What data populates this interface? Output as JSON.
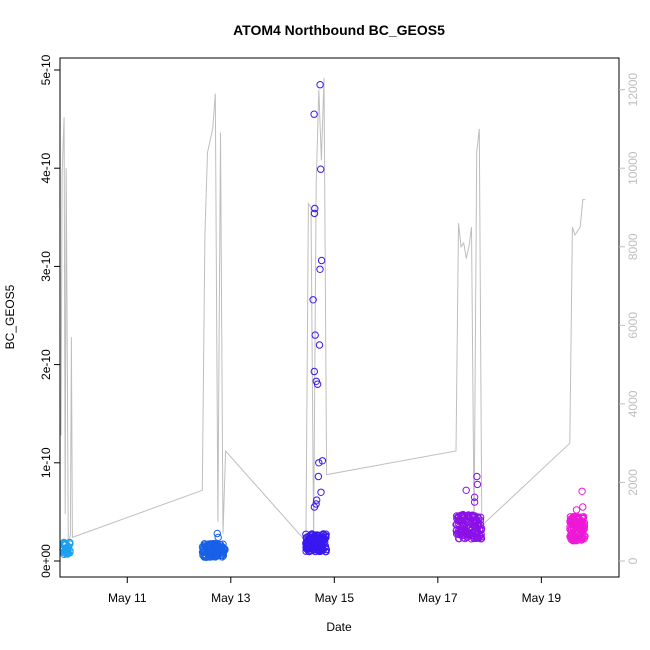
{
  "chart_data": {
    "type": "scatter",
    "title": "ATOM4 Northbound BC_GEOS5",
    "xlabel": "Date",
    "ylabel": "BC_GEOS5",
    "x_unit": "days (May, fractional day of month)",
    "xlim": [
      9.7,
      20.5
    ],
    "ylim": [
      0,
      5e-10
    ],
    "y_ticks": [
      {
        "value": 0,
        "label": "0e+00"
      },
      {
        "value": 1e-10,
        "label": "1e-10"
      },
      {
        "value": 2e-10,
        "label": "2e-10"
      },
      {
        "value": 3e-10,
        "label": "3e-10"
      },
      {
        "value": 4e-10,
        "label": "4e-10"
      },
      {
        "value": 5e-10,
        "label": "5e-10"
      }
    ],
    "x_ticks": [
      {
        "value": 11,
        "label": "May 11"
      },
      {
        "value": 13,
        "label": "May 13"
      },
      {
        "value": 15,
        "label": "May 15"
      },
      {
        "value": 17,
        "label": "May 17"
      },
      {
        "value": 19,
        "label": "May 19"
      }
    ],
    "y2lim": [
      0,
      12500
    ],
    "y2_ticks": [
      {
        "value": 0,
        "label": "0"
      },
      {
        "value": 2000,
        "label": "2000"
      },
      {
        "value": 4000,
        "label": "4000"
      },
      {
        "value": 6000,
        "label": "6000"
      },
      {
        "value": 8000,
        "label": "8000"
      },
      {
        "value": 10000,
        "label": "10000"
      },
      {
        "value": 12000,
        "label": "12000"
      }
    ],
    "grid": false,
    "legend": "none",
    "point_marker": "open-circle",
    "flights": [
      {
        "color": "#1ea0f0",
        "x_start": 9.75,
        "x_end": 9.9,
        "count": 40,
        "baseline": 1e-11,
        "spread": 1.3e-11,
        "outliers": []
      },
      {
        "color": "#1860e8",
        "x_start": 12.45,
        "x_end": 12.9,
        "count": 120,
        "baseline": 8e-12,
        "spread": 1.4e-11,
        "outliers": [
          2.8e-11,
          2.4e-11
        ]
      },
      {
        "color": "#3818f0",
        "x_start": 14.45,
        "x_end": 14.85,
        "count": 140,
        "baseline": 1.5e-11,
        "spread": 1.8e-11,
        "outliers": [
          4.85e-10,
          4.55e-10,
          3.99e-10,
          3.59e-10,
          3.54e-10,
          3.06e-10,
          2.97e-10,
          2.66e-10,
          2.3e-10,
          2.2e-10,
          1.93e-10,
          1.83e-10,
          1.8e-10,
          1.02e-10,
          1e-10,
          8.6e-11,
          7e-11,
          6.2e-11,
          5.8e-11,
          5.5e-11
        ]
      },
      {
        "color": "#8c10e8",
        "x_start": 17.35,
        "x_end": 17.85,
        "count": 130,
        "baseline": 3e-11,
        "spread": 2.5e-11,
        "outliers": [
          8.6e-11,
          7.8e-11,
          7.2e-11,
          6.5e-11,
          6e-11
        ]
      },
      {
        "color": "#ee18d8",
        "x_start": 19.55,
        "x_end": 19.85,
        "count": 120,
        "baseline": 2.8e-11,
        "spread": 2.5e-11,
        "outliers": [
          7.1e-11,
          5.5e-11,
          5.2e-11
        ]
      }
    ],
    "altitude_series": {
      "name": "",
      "axis": "right",
      "color": "#bebebe",
      "x": [
        9.72,
        9.74,
        9.76,
        9.78,
        9.8,
        9.82,
        9.84,
        9.86,
        9.88,
        9.9,
        9.92,
        9.94,
        12.45,
        12.5,
        12.55,
        12.6,
        12.65,
        12.7,
        12.75,
        12.8,
        12.85,
        12.9,
        14.45,
        14.5,
        14.55,
        14.6,
        14.65,
        14.7,
        14.75,
        14.8,
        14.85,
        17.35,
        17.4,
        17.45,
        17.5,
        17.55,
        17.6,
        17.65,
        17.7,
        17.75,
        17.8,
        17.85,
        19.55,
        19.6,
        19.65,
        19.7,
        19.75,
        19.8,
        19.85
      ],
      "y": [
        3200,
        9800,
        10600,
        11300,
        1200,
        10000,
        5600,
        300,
        500,
        700,
        5700,
        600,
        1800,
        8300,
        10400,
        10700,
        11000,
        11900,
        1000,
        10900,
        700,
        2800,
        500,
        9100,
        9000,
        600,
        9600,
        12000,
        10200,
        12300,
        2200,
        2800,
        8600,
        8000,
        8100,
        7700,
        8000,
        8500,
        900,
        10400,
        11000,
        900,
        3000,
        8500,
        8300,
        8400,
        8500,
        9200,
        9200
      ]
    }
  }
}
